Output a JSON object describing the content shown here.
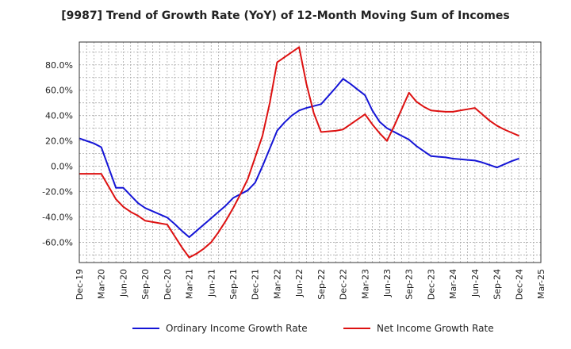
{
  "chart_data": {
    "type": "line",
    "title": "[9987]  Trend of Growth Rate (YoY) of 12-Month Moving Sum of Incomes",
    "xlabel": "",
    "ylabel": "",
    "x_ticks": [
      "Dec-19",
      "Mar-20",
      "Jun-20",
      "Sep-20",
      "Dec-20",
      "Mar-21",
      "Jun-21",
      "Sep-21",
      "Dec-21",
      "Mar-22",
      "Jun-22",
      "Sep-22",
      "Dec-22",
      "Mar-23",
      "Jun-23",
      "Sep-23",
      "Dec-23",
      "Mar-24",
      "Jun-24",
      "Sep-24",
      "Dec-24",
      "Mar-25"
    ],
    "y_ticks": [
      "-60.0%",
      "-40.0%",
      "-20.0%",
      "0.0%",
      "20.0%",
      "40.0%",
      "60.0%",
      "80.0%"
    ],
    "y_tick_values": [
      -60,
      -40,
      -20,
      0,
      20,
      40,
      60,
      80
    ],
    "ylim": [
      -76,
      98
    ],
    "grid": true,
    "legend_position": "bottom",
    "x": [
      "Dec-19",
      "Jan-20",
      "Feb-20",
      "Mar-20",
      "Apr-20",
      "May-20",
      "Jun-20",
      "Jul-20",
      "Aug-20",
      "Sep-20",
      "Oct-20",
      "Nov-20",
      "Dec-20",
      "Jan-21",
      "Feb-21",
      "Mar-21",
      "Apr-21",
      "May-21",
      "Jun-21",
      "Jul-21",
      "Aug-21",
      "Sep-21",
      "Oct-21",
      "Nov-21",
      "Dec-21",
      "Jan-22",
      "Feb-22",
      "Mar-22",
      "Apr-22",
      "May-22",
      "Jun-22",
      "Jul-22",
      "Aug-22",
      "Sep-22",
      "Oct-22",
      "Nov-22",
      "Dec-22",
      "Jan-23",
      "Feb-23",
      "Mar-23",
      "Apr-23",
      "May-23",
      "Jun-23",
      "Jul-23",
      "Aug-23",
      "Sep-23",
      "Oct-23",
      "Nov-23",
      "Dec-23",
      "Jan-24",
      "Feb-24",
      "Mar-24",
      "Apr-24",
      "May-24",
      "Jun-24",
      "Jul-24",
      "Aug-24",
      "Sep-24",
      "Oct-24",
      "Nov-24",
      "Dec-24"
    ],
    "series": [
      {
        "name": "Ordinary Income Growth Rate",
        "color": "#1515d6",
        "values": [
          22,
          20,
          18,
          15,
          -1,
          -17,
          -17,
          -23,
          -29,
          -33,
          -35.5,
          -38,
          -40.5,
          -45.5,
          -51,
          -56,
          -51,
          -46,
          -41,
          -36,
          -31,
          -25,
          -22,
          -19,
          -13,
          0,
          14,
          28,
          34.5,
          40,
          44,
          46,
          47.5,
          49,
          55.5,
          62,
          69,
          65,
          60.5,
          56,
          44,
          35,
          30,
          27,
          24,
          21,
          16,
          12,
          8,
          7.5,
          7,
          6,
          5.5,
          5,
          4.5,
          3,
          1,
          -1,
          1.5,
          4,
          6
        ]
      },
      {
        "name": "Net Income Growth Rate",
        "color": "#dd1111",
        "values": [
          -6,
          -6,
          -6,
          -6,
          -16,
          -26,
          -32,
          -36,
          -39,
          -43,
          -44,
          -45,
          -46,
          -55,
          -64,
          -72,
          -69,
          -65,
          -60,
          -52,
          -43,
          -33,
          -22,
          -10,
          7,
          24,
          50,
          82,
          86,
          90,
          94,
          65,
          42,
          27,
          27.5,
          28,
          29,
          33,
          37,
          41,
          33,
          26,
          20,
          32,
          45,
          58,
          51,
          47,
          44,
          43.5,
          43,
          43,
          44,
          45,
          46,
          41,
          36,
          32,
          29,
          26.5,
          24
        ]
      }
    ]
  }
}
